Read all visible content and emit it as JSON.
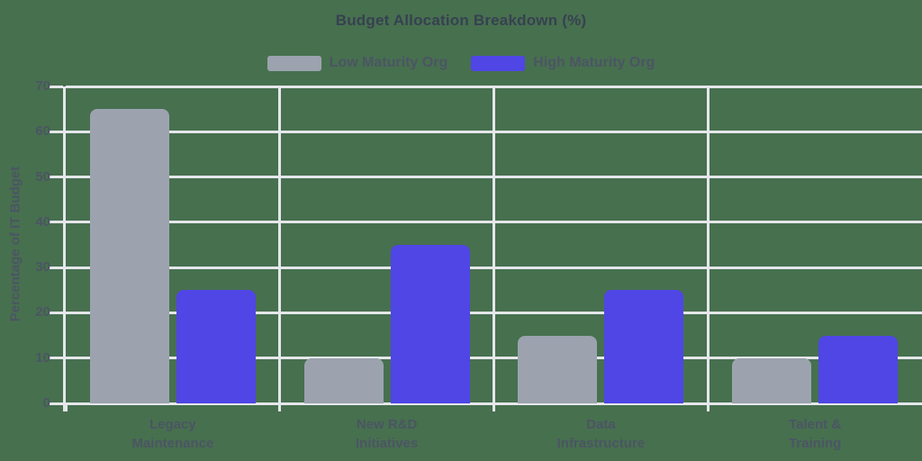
{
  "title": "Budget Allocation Breakdown (%)",
  "legend": {
    "items": [
      {
        "label": "Low Maturity Org"
      },
      {
        "label": "High Maturity Org"
      }
    ]
  },
  "y_axis_title": "Percentage of IT Budget",
  "chart_data": {
    "type": "bar",
    "title": "Budget Allocation Breakdown (%)",
    "categories": [
      "Legacy\nMaintenance",
      "New R&D\nInitiatives",
      "Data\nInfrastructure",
      "Talent &\nTraining"
    ],
    "series": [
      {
        "name": "Low Maturity Org",
        "color": "#9ca3af",
        "values": [
          65,
          10,
          15,
          10
        ]
      },
      {
        "name": "High Maturity Org",
        "color": "#4f46e5",
        "values": [
          25,
          35,
          25,
          15
        ]
      }
    ],
    "xlabel": "",
    "ylabel": "Percentage of IT Budget",
    "ylim": [
      0,
      70
    ],
    "ytick_step": 10,
    "ytick_labels": [
      "0",
      "10",
      "20",
      "30",
      "40",
      "50",
      "60",
      "70"
    ],
    "grid": true,
    "legend_position": "top"
  },
  "colors": {
    "background": "#47704f",
    "grid": "#e5e7eb",
    "title_text": "#374151",
    "tick_text": "#4b5563",
    "series_low": "#9ca3af",
    "series_high": "#4f46e5"
  }
}
